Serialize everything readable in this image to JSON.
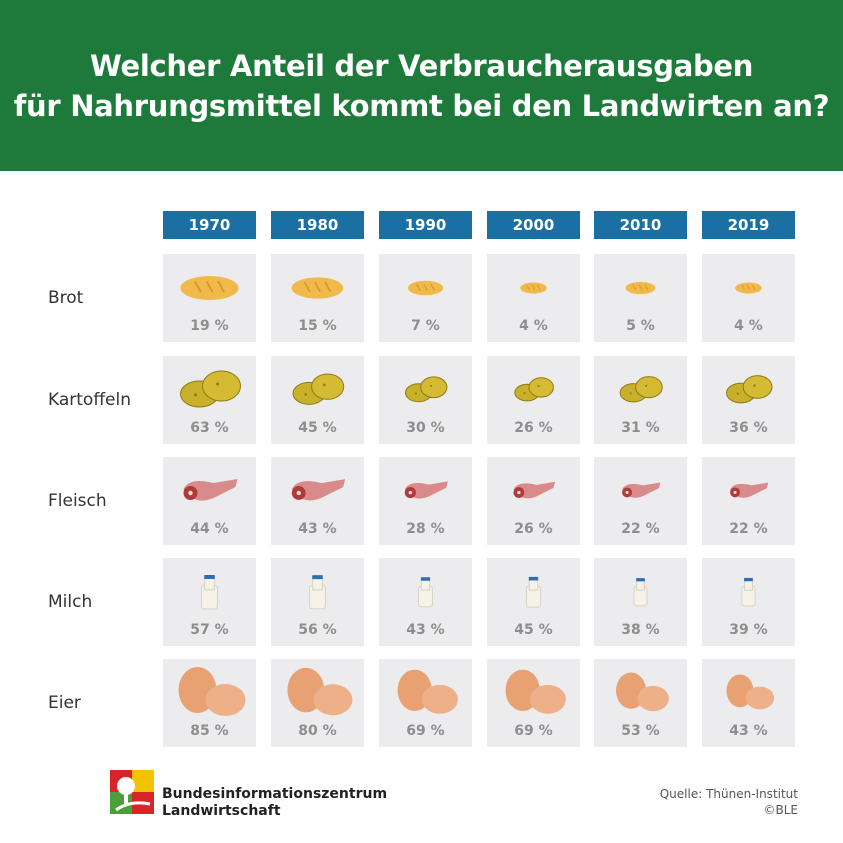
{
  "header": {
    "title_line1": "Welcher Anteil der Verbraucherausgaben",
    "title_line2": "für Nahrungsmittel kommt bei den Landwirten an?"
  },
  "chart_data": {
    "type": "table",
    "title": "Welcher Anteil der Verbraucherausgaben für Nahrungsmittel kommt bei den Landwirten an?",
    "years": [
      "1970",
      "1980",
      "1990",
      "2000",
      "2010",
      "2019"
    ],
    "series": [
      {
        "name": "Brot",
        "values": [
          19,
          15,
          7,
          4,
          5,
          4
        ],
        "icon": "bread-icon"
      },
      {
        "name": "Kartoffeln",
        "values": [
          63,
          45,
          30,
          26,
          31,
          36
        ],
        "icon": "potato-icon"
      },
      {
        "name": "Fleisch",
        "values": [
          44,
          43,
          28,
          26,
          22,
          22
        ],
        "icon": "meat-icon"
      },
      {
        "name": "Milch",
        "values": [
          57,
          56,
          43,
          45,
          38,
          39
        ],
        "icon": "milk-bottle-icon"
      },
      {
        "name": "Eier",
        "values": [
          85,
          80,
          69,
          69,
          53,
          43
        ],
        "icon": "egg-icon"
      }
    ],
    "unit": "%",
    "colors": {
      "header": "#1d7a3a",
      "year_header": "#1a6fa3",
      "cell": "#ececee",
      "bread": "#f0b94a",
      "potato": "#c9b02a",
      "meat": "#d98b8b",
      "milk": "#f5f3e8",
      "egg": "#e8a173"
    }
  },
  "footer": {
    "org_line1": "Bundesinformationszentrum",
    "org_line2": "Landwirtschaft",
    "source_line1": "Quelle: Thünen-Institut",
    "source_line2": "©BLE"
  }
}
